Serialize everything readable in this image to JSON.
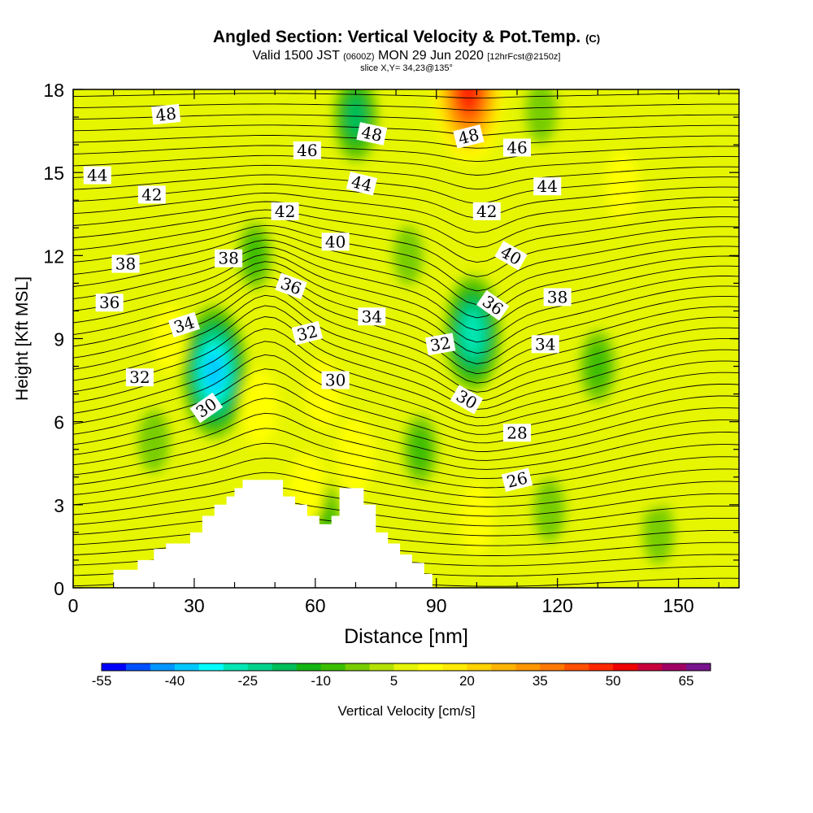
{
  "header": {
    "title": "Angled Section: Vertical Velocity & Pot.Temp.",
    "title_mark": "(C)",
    "subtitle_pre": "Valid 1500 JST",
    "subtitle_z": "(0600Z)",
    "subtitle_post": "MON 29 Jun 2020",
    "subtitle_fcst": "[12hrFcst@2150z]",
    "slice": "slice X,Y= 34,23@135°"
  },
  "chart_data": {
    "type": "heatmap",
    "xlabel": "Distance [nm]",
    "ylabel": "Height [Kft MSL]",
    "xlim": [
      0,
      165
    ],
    "ylim": [
      0,
      18
    ],
    "xticks": [
      0,
      30,
      60,
      90,
      120,
      150
    ],
    "yticks": [
      0,
      3,
      6,
      9,
      12,
      15,
      18
    ],
    "colorbar": {
      "label": "Vertical Velocity [cm/s]",
      "min": -55,
      "max": 70,
      "step": 5,
      "tick_labels": [
        -55,
        -40,
        -25,
        -10,
        5,
        20,
        35,
        50,
        65
      ],
      "colors": [
        "#0000ff",
        "#0050ff",
        "#0096ff",
        "#00c8ff",
        "#00ffff",
        "#00e6b4",
        "#00d28c",
        "#00be5a",
        "#14b414",
        "#3cbe00",
        "#78cd00",
        "#b4e100",
        "#e6f500",
        "#ffff00",
        "#ffeb00",
        "#ffd200",
        "#ffb400",
        "#ff9600",
        "#ff7800",
        "#ff5000",
        "#ff2800",
        "#f00000",
        "#c8003c",
        "#a00064",
        "#78148c"
      ]
    },
    "updraft_cores": [
      {
        "x": 46,
        "y": 6.5,
        "w": 14
      },
      {
        "x": 58,
        "y": 3.6,
        "w": 12
      },
      {
        "x": 62,
        "y": 7.0,
        "w": 12
      },
      {
        "x": 70,
        "y": 4.8,
        "w": 14
      },
      {
        "x": 22,
        "y": 2.3,
        "w": 9
      },
      {
        "x": 24,
        "y": 9.0,
        "w": 10
      },
      {
        "x": 100,
        "y": 2.5,
        "w": 12
      },
      {
        "x": 100,
        "y": 17.2,
        "w": 22
      },
      {
        "x": 98,
        "y": 18.0,
        "w": 45
      },
      {
        "x": 108,
        "y": 6.5,
        "w": 8
      },
      {
        "x": 136,
        "y": 14.5,
        "w": 10
      },
      {
        "x": 144,
        "y": 4.0,
        "w": 8
      },
      {
        "x": 150,
        "y": 10.0,
        "w": 8
      },
      {
        "x": 62,
        "y": 12.5,
        "w": 6
      },
      {
        "x": 82,
        "y": 16.5,
        "w": 8
      }
    ],
    "downdraft_cores": [
      {
        "x": 35,
        "y": 7.8,
        "w": -40
      },
      {
        "x": 99,
        "y": 9.2,
        "w": -32
      },
      {
        "x": 70,
        "y": 17.0,
        "w": -20
      },
      {
        "x": 45,
        "y": 12.0,
        "w": -10
      },
      {
        "x": 20,
        "y": 5.3,
        "w": -8
      },
      {
        "x": 130,
        "y": 8.0,
        "w": -12
      },
      {
        "x": 86,
        "y": 5.0,
        "w": -10
      },
      {
        "x": 118,
        "y": 2.8,
        "w": -8
      },
      {
        "x": 145,
        "y": 2.0,
        "w": -8
      },
      {
        "x": 62,
        "y": 2.5,
        "w": -12
      },
      {
        "x": 83,
        "y": 12.0,
        "w": -6
      },
      {
        "x": 116,
        "y": 17.2,
        "w": -8
      }
    ],
    "isentrope_labels": [
      {
        "text": "48",
        "x": 23,
        "y": 17.1,
        "angle": -6
      },
      {
        "text": "44",
        "x": 6,
        "y": 14.9,
        "angle": 0
      },
      {
        "text": "42",
        "x": 19.5,
        "y": 14.2,
        "angle": 0
      },
      {
        "text": "38",
        "x": 13,
        "y": 11.7,
        "angle": 0
      },
      {
        "text": "36",
        "x": 9,
        "y": 10.3,
        "angle": 0
      },
      {
        "text": "34",
        "x": 27.5,
        "y": 9.5,
        "angle": -18
      },
      {
        "text": "32",
        "x": 16.5,
        "y": 7.6,
        "angle": 0
      },
      {
        "text": "30",
        "x": 33,
        "y": 6.5,
        "angle": -35
      },
      {
        "text": "38",
        "x": 38.5,
        "y": 11.9,
        "angle": 0
      },
      {
        "text": "46",
        "x": 58,
        "y": 15.8,
        "angle": 0
      },
      {
        "text": "42",
        "x": 52.5,
        "y": 13.6,
        "angle": 0
      },
      {
        "text": "36",
        "x": 54,
        "y": 10.9,
        "angle": 20
      },
      {
        "text": "32",
        "x": 58,
        "y": 9.2,
        "angle": -14
      },
      {
        "text": "48",
        "x": 74,
        "y": 16.4,
        "angle": 12
      },
      {
        "text": "44",
        "x": 71.5,
        "y": 14.6,
        "angle": 14
      },
      {
        "text": "40",
        "x": 65,
        "y": 12.5,
        "angle": 0
      },
      {
        "text": "34",
        "x": 74,
        "y": 9.8,
        "angle": 0
      },
      {
        "text": "30",
        "x": 65,
        "y": 7.5,
        "angle": 0
      },
      {
        "text": "48",
        "x": 98,
        "y": 16.3,
        "angle": -14
      },
      {
        "text": "46",
        "x": 110,
        "y": 15.9,
        "angle": 0
      },
      {
        "text": "44",
        "x": 117.5,
        "y": 14.5,
        "angle": 0
      },
      {
        "text": "42",
        "x": 102.5,
        "y": 13.6,
        "angle": 0
      },
      {
        "text": "40",
        "x": 108.5,
        "y": 12.0,
        "angle": 30
      },
      {
        "text": "38",
        "x": 120,
        "y": 10.5,
        "angle": 0
      },
      {
        "text": "36",
        "x": 104,
        "y": 10.2,
        "angle": 35
      },
      {
        "text": "34",
        "x": 117,
        "y": 8.8,
        "angle": 0
      },
      {
        "text": "32",
        "x": 91,
        "y": 8.8,
        "angle": -10
      },
      {
        "text": "30",
        "x": 97.5,
        "y": 6.8,
        "angle": 30
      },
      {
        "text": "28",
        "x": 110,
        "y": 5.6,
        "angle": 0
      },
      {
        "text": "26",
        "x": 110,
        "y": 3.9,
        "angle": -14
      }
    ],
    "terrain": [
      [
        10,
        0
      ],
      [
        10,
        0.65
      ],
      [
        16,
        0.65
      ],
      [
        16,
        1
      ],
      [
        20,
        1
      ],
      [
        20,
        1.4
      ],
      [
        23,
        1.4
      ],
      [
        23,
        1.6
      ],
      [
        29,
        1.6
      ],
      [
        29,
        2
      ],
      [
        32,
        2
      ],
      [
        32,
        2.6
      ],
      [
        35,
        2.6
      ],
      [
        35,
        3
      ],
      [
        38,
        3
      ],
      [
        38,
        3.3
      ],
      [
        40,
        3.3
      ],
      [
        40,
        3.6
      ],
      [
        42,
        3.6
      ],
      [
        42,
        3.9
      ],
      [
        52,
        3.9
      ],
      [
        52,
        3.3
      ],
      [
        55,
        3.3
      ],
      [
        55,
        3
      ],
      [
        58,
        3
      ],
      [
        58,
        2.6
      ],
      [
        61,
        2.6
      ],
      [
        61,
        2.3
      ],
      [
        64,
        2.3
      ],
      [
        64,
        2.6
      ],
      [
        66,
        2.6
      ],
      [
        66,
        3.6
      ],
      [
        72,
        3.6
      ],
      [
        72,
        3
      ],
      [
        75,
        3
      ],
      [
        75,
        2
      ],
      [
        78,
        2
      ],
      [
        78,
        1.6
      ],
      [
        81,
        1.6
      ],
      [
        81,
        1.2
      ],
      [
        84,
        1.2
      ],
      [
        84,
        0.9
      ],
      [
        87,
        0.9
      ],
      [
        87,
        0.5
      ],
      [
        89,
        0.5
      ],
      [
        89,
        0
      ]
    ]
  }
}
